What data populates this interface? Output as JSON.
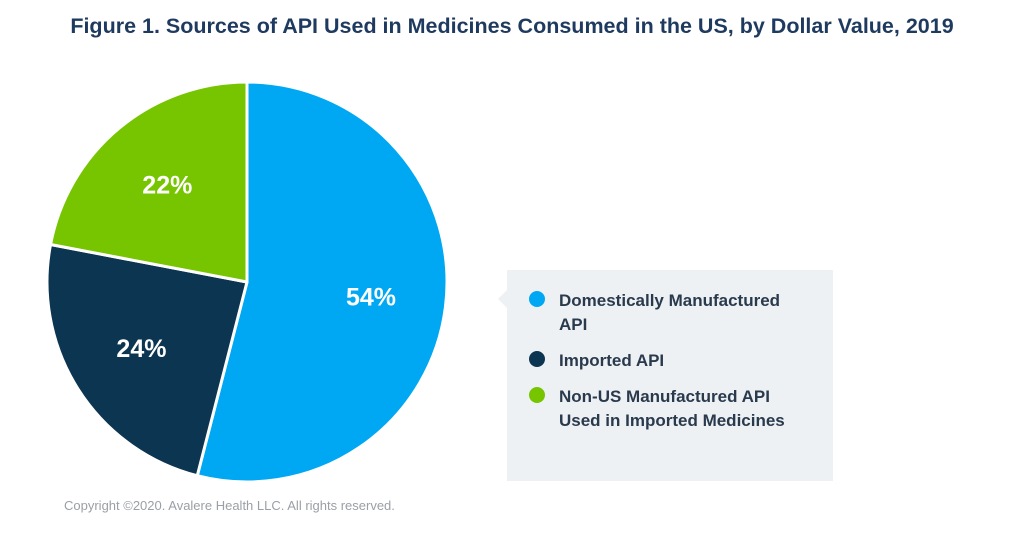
{
  "title": "Figure 1. Sources of API Used in Medicines Consumed in the US, by Dollar Value, 2019",
  "copyright": "Copyright ©2020. Avalere Health LLC. All rights reserved.",
  "chart_data": {
    "type": "pie",
    "title": "Figure 1. Sources of API Used in Medicines Consumed in the US, by Dollar Value, 2019",
    "slices": [
      {
        "name": "Domestically Manufactured API",
        "value": 54,
        "label": "54%",
        "color": "#00a8f3"
      },
      {
        "name": "Imported API",
        "value": 24,
        "label": "24%",
        "color": "#0c3551"
      },
      {
        "name": "Non-US Manufactured API Used in Imported Medicines",
        "value": 22,
        "label": "22%",
        "color": "#76c500"
      }
    ],
    "legend_position": "right",
    "slice_border_color": "#ffffff"
  },
  "legend": {
    "items": [
      {
        "label": "Domestically Manufactured API",
        "color": "#00a8f3"
      },
      {
        "label": "Imported API",
        "color": "#0c3551"
      },
      {
        "label": "Non-US Manufactured API Used in Imported Medicines",
        "color": "#76c500"
      }
    ]
  }
}
